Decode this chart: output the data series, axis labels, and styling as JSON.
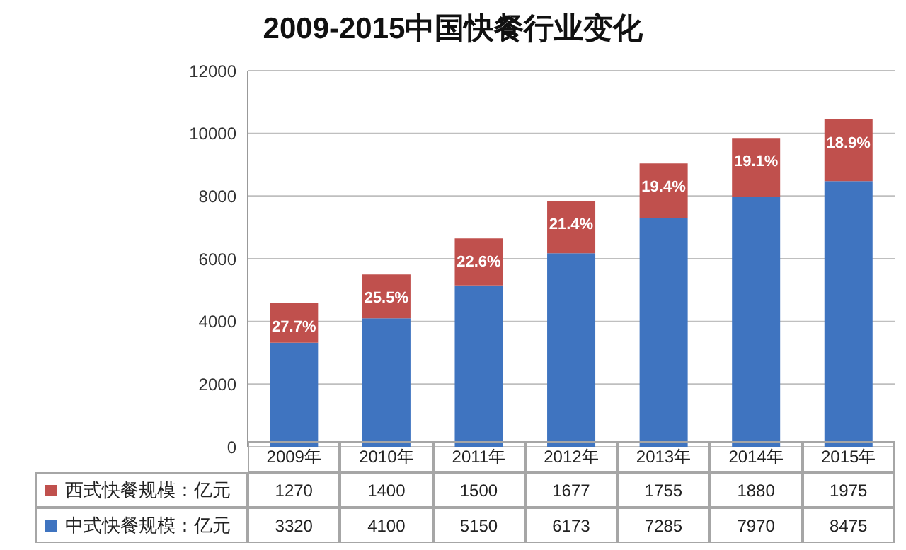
{
  "chart_data": {
    "type": "bar",
    "title": "2009-2015中国快餐行业变化",
    "stacked": true,
    "categories": [
      "2009年",
      "2010年",
      "2011年",
      "2012年",
      "2013年",
      "2014年",
      "2015年"
    ],
    "series": [
      {
        "name": "中式快餐规模：亿元",
        "color": "#3f74c0",
        "values": [
          3320,
          4100,
          5150,
          6173,
          7285,
          7970,
          8475
        ]
      },
      {
        "name": "西式快餐规模：亿元",
        "color": "#c0504d",
        "values": [
          1270,
          1400,
          1500,
          1677,
          1755,
          1880,
          1975
        ]
      }
    ],
    "annotations": [
      {
        "text": "27.7%",
        "x": "2009年",
        "y": 4590
      },
      {
        "text": "25.5%",
        "x": "2010年",
        "y": 5500
      },
      {
        "text": "22.6%",
        "x": "2011年",
        "y": 6650
      },
      {
        "text": "21.4%",
        "x": "2012年",
        "y": 7850
      },
      {
        "text": "19.4%",
        "x": "2013年",
        "y": 9040
      },
      {
        "text": "19.1%",
        "x": "2014年",
        "y": 9850
      },
      {
        "text": "18.9%",
        "x": "2015年",
        "y": 10450
      }
    ],
    "ylim": [
      0,
      12000
    ],
    "yticks": [
      0,
      2000,
      4000,
      6000,
      8000,
      10000,
      12000
    ],
    "grid": "y",
    "legend": "bottom",
    "data_labels": true
  }
}
